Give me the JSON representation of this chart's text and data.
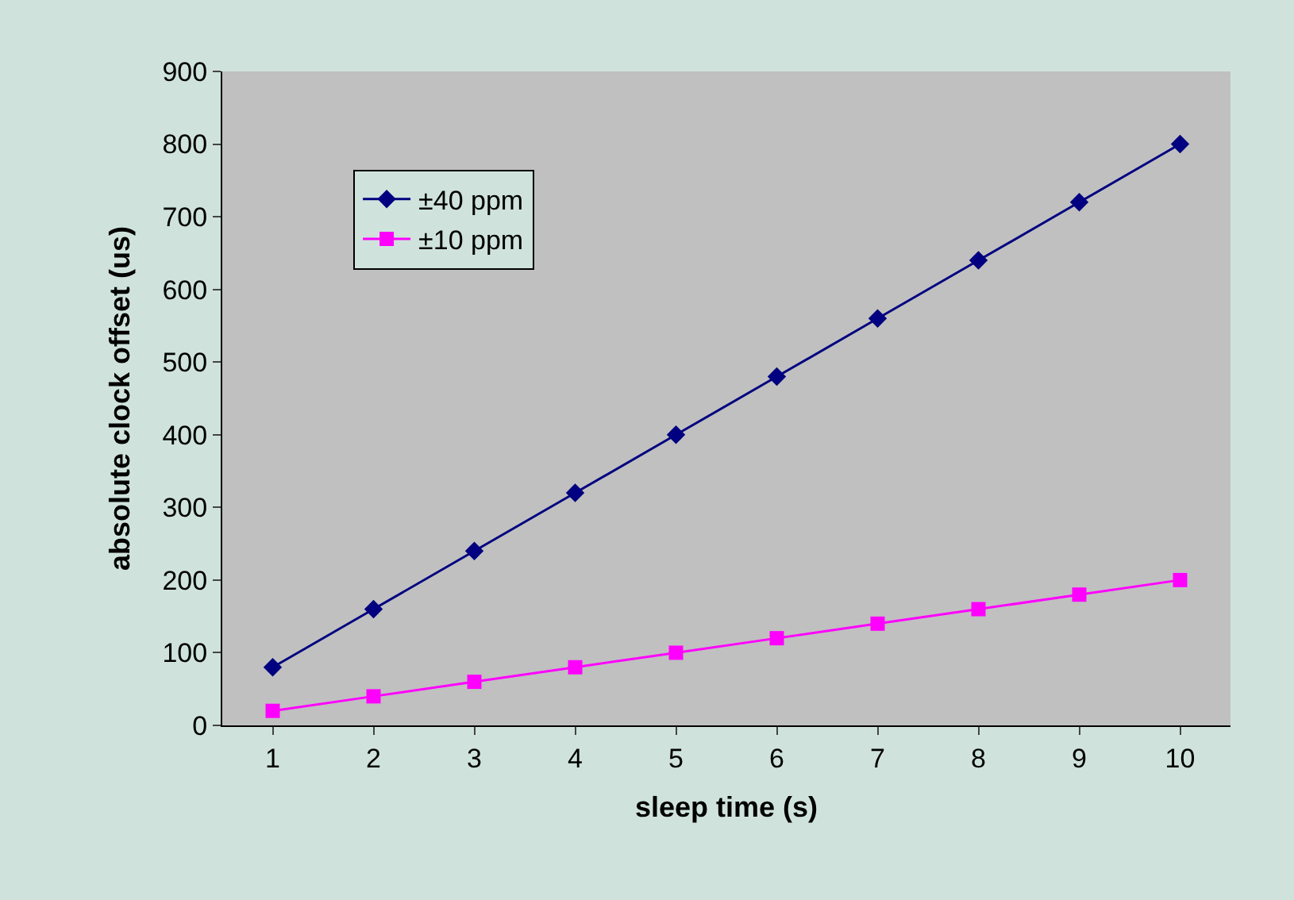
{
  "chart_data": {
    "type": "line",
    "xlabel": "sleep time (s)",
    "ylabel": "absolute clock offset (us)",
    "categories": [
      "1",
      "2",
      "3",
      "4",
      "5",
      "6",
      "7",
      "8",
      "9",
      "10"
    ],
    "series": [
      {
        "name": "±40 ppm",
        "color": "#000080",
        "marker": "diamond",
        "values": [
          80,
          160,
          240,
          320,
          400,
          480,
          560,
          640,
          720,
          800
        ]
      },
      {
        "name": "±10 ppm",
        "color": "#ff00ff",
        "marker": "square",
        "values": [
          20,
          40,
          60,
          80,
          100,
          120,
          140,
          160,
          180,
          200
        ]
      }
    ],
    "ylim": [
      0,
      900
    ],
    "yticks": [
      0,
      100,
      200,
      300,
      400,
      500,
      600,
      700,
      800,
      900
    ],
    "grid": false,
    "legend": "top left",
    "line_style": "solid"
  }
}
